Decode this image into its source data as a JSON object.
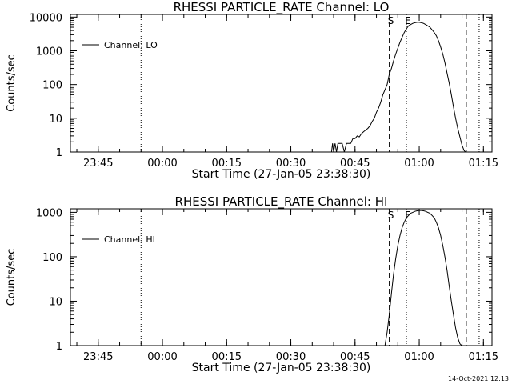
{
  "footer": {
    "timestamp": "14-Oct-2021 12:13"
  },
  "chart_data": [
    {
      "type": "line",
      "title": "RHESSI PARTICLE_RATE Channel: LO",
      "xlabel": "Start Time (27-Jan-05 23:38:30)",
      "ylabel": "Counts/sec",
      "yscale": "log",
      "ylim": [
        1,
        12000
      ],
      "xlim": [
        "23:38:30",
        "01:17:00"
      ],
      "x_ticks": [
        "23:45",
        "00:00",
        "00:15",
        "00:30",
        "00:45",
        "01:00",
        "01:15"
      ],
      "y_ticks": [
        "1",
        "10",
        "100",
        "1000",
        "10000"
      ],
      "legend": {
        "position": "top-left",
        "entries": [
          "Channel: LO"
        ]
      },
      "markers": [
        {
          "label": "",
          "time": "23:55",
          "style": "dotted"
        },
        {
          "label": "S",
          "time": "00:53",
          "style": "dashed"
        },
        {
          "label": "E",
          "time": "00:57",
          "style": "dotted"
        },
        {
          "label": "",
          "time": "01:11",
          "style": "dashed"
        },
        {
          "label": "",
          "time": "01:14",
          "style": "dotted"
        }
      ],
      "series": [
        {
          "x": [
            "00:39:30",
            "00:39:45",
            "00:40:00",
            "00:40:20",
            "00:40:40",
            "00:41:00",
            "00:41:30",
            "00:42:00",
            "00:42:30",
            "00:43:00",
            "00:43:30",
            "00:44:00",
            "00:44:30",
            "00:45:00",
            "00:45:30",
            "00:46:00",
            "00:46:30",
            "00:47:00",
            "00:47:30",
            "00:48:00",
            "00:48:30",
            "00:49:00",
            "00:49:30",
            "00:50:00",
            "00:50:30",
            "00:51:00",
            "00:51:30",
            "00:52:00",
            "00:52:30",
            "00:53:00",
            "00:53:30",
            "00:54:00",
            "00:54:30",
            "00:55:00",
            "00:55:30",
            "00:56:00",
            "00:56:30",
            "00:57:00",
            "00:57:30",
            "00:58:00",
            "00:58:30",
            "00:59:00",
            "00:59:30",
            "01:00:00",
            "01:00:30",
            "01:01:00",
            "01:01:30",
            "01:02:00",
            "01:02:30",
            "01:03:00",
            "01:03:30",
            "01:04:00",
            "01:04:30",
            "01:05:00",
            "01:05:30",
            "01:06:00",
            "01:06:30",
            "01:07:00",
            "01:07:30",
            "01:08:00",
            "01:08:30",
            "01:09:00",
            "01:09:30",
            "01:10:00",
            "01:10:30",
            "01:10:50"
          ],
          "y": [
            1,
            1.8,
            1,
            1.8,
            1,
            1.8,
            1.8,
            1.8,
            1,
            1.8,
            1.8,
            1.8,
            2.5,
            2.5,
            3,
            2.8,
            3.5,
            4,
            4.5,
            5,
            6,
            8,
            10,
            15,
            20,
            30,
            50,
            70,
            100,
            200,
            300,
            500,
            800,
            1200,
            1800,
            2500,
            3500,
            4500,
            5500,
            6000,
            6500,
            6800,
            7000,
            7000,
            6800,
            6500,
            6000,
            5500,
            5000,
            4200,
            3500,
            2800,
            2000,
            1300,
            800,
            450,
            220,
            110,
            50,
            22,
            10,
            5,
            2.8,
            1.6,
            1.1,
            1
          ]
        }
      ]
    },
    {
      "type": "line",
      "title": "RHESSI PARTICLE_RATE Channel: HI",
      "xlabel": "Start Time (27-Jan-05 23:38:30)",
      "ylabel": "Counts/sec",
      "yscale": "log",
      "ylim": [
        1,
        1200
      ],
      "xlim": [
        "23:38:30",
        "01:17:00"
      ],
      "x_ticks": [
        "23:45",
        "00:00",
        "00:15",
        "00:30",
        "00:45",
        "01:00",
        "01:15"
      ],
      "y_ticks": [
        "1",
        "10",
        "100",
        "1000"
      ],
      "legend": {
        "position": "top-left",
        "entries": [
          "Channel: HI"
        ]
      },
      "markers": [
        {
          "label": "",
          "time": "23:55",
          "style": "dotted"
        },
        {
          "label": "S",
          "time": "00:53",
          "style": "dashed"
        },
        {
          "label": "E",
          "time": "00:57",
          "style": "dotted"
        },
        {
          "label": "",
          "time": "01:11",
          "style": "dashed"
        },
        {
          "label": "",
          "time": "01:14",
          "style": "dotted"
        }
      ],
      "series": [
        {
          "x": [
            "00:52:00",
            "00:52:30",
            "00:53:00",
            "00:53:30",
            "00:54:00",
            "00:54:30",
            "00:55:00",
            "00:55:30",
            "00:56:00",
            "00:56:30",
            "00:57:00",
            "00:57:30",
            "00:58:00",
            "00:58:30",
            "00:59:00",
            "00:59:30",
            "01:00:00",
            "01:00:30",
            "01:01:00",
            "01:01:30",
            "01:02:00",
            "01:02:30",
            "01:03:00",
            "01:03:30",
            "01:04:00",
            "01:04:30",
            "01:05:00",
            "01:05:30",
            "01:06:00",
            "01:06:30",
            "01:07:00",
            "01:07:30",
            "01:08:00",
            "01:08:30",
            "01:09:00",
            "01:09:30",
            "01:10:00",
            "01:10:30"
          ],
          "y": [
            1,
            2,
            5,
            15,
            40,
            90,
            180,
            300,
            450,
            600,
            750,
            850,
            950,
            1000,
            1050,
            1080,
            1100,
            1100,
            1080,
            1050,
            1000,
            950,
            850,
            750,
            600,
            450,
            300,
            180,
            100,
            50,
            22,
            10,
            5,
            2.5,
            1.5,
            1.1,
            1,
            1
          ]
        }
      ]
    }
  ]
}
